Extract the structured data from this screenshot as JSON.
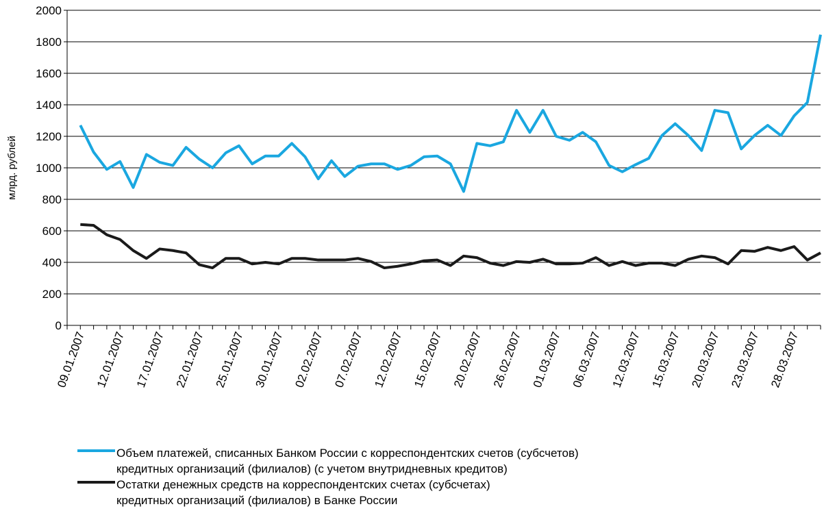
{
  "chart_data": {
    "type": "line",
    "y_label": "млрд. рублей",
    "categories": [
      "09.01.2007",
      null,
      null,
      "12.01.2007",
      null,
      null,
      "17.01.2007",
      null,
      null,
      "22.01.2007",
      null,
      null,
      "25.01.2007",
      null,
      null,
      "30.01.2007",
      null,
      null,
      "02.02.2007",
      null,
      null,
      "07.02.2007",
      null,
      null,
      "12.02.2007",
      null,
      null,
      "15.02.2007",
      null,
      null,
      "20.02.2007",
      null,
      null,
      "26.02.2007",
      null,
      null,
      "01.03.2007",
      null,
      null,
      "06.03.2007",
      null,
      null,
      "12.03.2007",
      null,
      null,
      "15.03.2007",
      null,
      null,
      "20.03.2007",
      null,
      null,
      "23.03.2007",
      null,
      null,
      "28.03.2007",
      null,
      null
    ],
    "series": [
      {
        "name": "Объем платежей, списанных Банком России с корреспондентских счетов (субсчетов)\nкредитных организаций (филиалов) (с учетом внутридневных кредитов)",
        "color": "#1aa7e0",
        "values": [
          1270,
          1100,
          990,
          1040,
          875,
          1085,
          1035,
          1015,
          1130,
          1055,
          1000,
          1095,
          1140,
          1025,
          1075,
          1075,
          1155,
          1070,
          930,
          1045,
          945,
          1010,
          1025,
          1025,
          990,
          1015,
          1070,
          1075,
          1025,
          850,
          1155,
          1140,
          1165,
          1365,
          1225,
          1365,
          1200,
          1175,
          1225,
          1165,
          1015,
          975,
          1020,
          1060,
          1205,
          1280,
          1205,
          1110,
          1365,
          1350,
          1120,
          1205,
          1270,
          1205,
          1330,
          1415,
          1845
        ]
      },
      {
        "name": "Остатки денежных средств на корреспондентских счетах (субсчетах)\nкредитных организаций (филиалов) в Банке России",
        "color": "#1a1a1a",
        "values": [
          640,
          635,
          575,
          545,
          475,
          425,
          485,
          475,
          460,
          385,
          365,
          425,
          425,
          390,
          400,
          390,
          425,
          425,
          415,
          415,
          415,
          425,
          405,
          365,
          375,
          390,
          410,
          415,
          380,
          440,
          430,
          395,
          380,
          405,
          400,
          420,
          390,
          390,
          395,
          430,
          380,
          405,
          380,
          395,
          395,
          380,
          420,
          440,
          430,
          390,
          475,
          470,
          495,
          475,
          500,
          415,
          460
        ]
      }
    ],
    "ylim": [
      0,
      2000
    ],
    "yticks": [
      0,
      200,
      400,
      600,
      800,
      1000,
      1200,
      1400,
      1600,
      1800,
      2000
    ],
    "grid": true
  }
}
